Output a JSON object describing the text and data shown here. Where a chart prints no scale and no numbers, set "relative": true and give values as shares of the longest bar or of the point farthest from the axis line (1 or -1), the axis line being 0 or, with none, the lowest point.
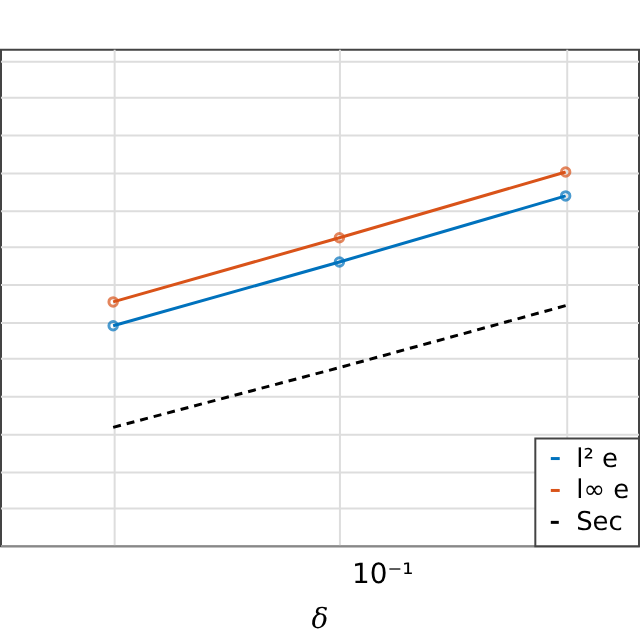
{
  "chart_data": {
    "type": "line",
    "xlabel": "δ",
    "relative": true,
    "categories": [
      null,
      null,
      null
    ],
    "annotations": [
      "10⁻¹"
    ],
    "grid": true,
    "legend": "bottom right",
    "tick_labels": false,
    "marker": "circle",
    "series": [
      {
        "name": "l² e",
        "color": "#0072bd",
        "values": [
          0.588,
          0.759,
          0.936
        ]
      },
      {
        "name": "l∞ e",
        "color": "#d95319",
        "values": [
          0.652,
          0.824,
          1.0
        ]
      },
      {
        "name": "Sec",
        "color": "#000000",
        "marker": "none",
        "line_style": "dashed",
        "values": [
          0.316,
          0.476,
          0.642
        ]
      }
    ]
  }
}
